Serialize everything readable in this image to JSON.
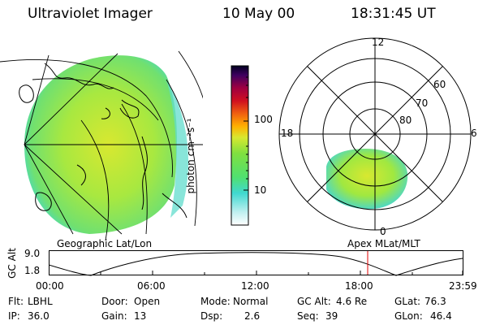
{
  "header": {
    "instrument": "Ultraviolet Imager",
    "date": "10 May 00",
    "time": "18:31:45 UT"
  },
  "colorbar": {
    "unit_label": "photon cm⁻²s⁻¹",
    "ticks": [
      "100",
      "10"
    ]
  },
  "polar_plot": {
    "mlt_labels": {
      "top": "12",
      "right": "6",
      "left": "18",
      "bottom": "0"
    },
    "lat_labels": [
      "60",
      "70",
      "80"
    ],
    "title": "Apex MLat/MLT"
  },
  "geo_map": {
    "title": "Geographic Lat/Lon"
  },
  "orbit_plot": {
    "ylabel": "GC Alt",
    "y_ticks": [
      "9.0",
      "1.8"
    ],
    "x_ticks": [
      "00:00",
      "06:00",
      "12:00",
      "18:00",
      "23:59"
    ],
    "current_time_marker": "18:31"
  },
  "info": {
    "row1": [
      {
        "label": "Flt:",
        "value": "LBHL"
      },
      {
        "label": "Door:",
        "value": "Open"
      },
      {
        "label": "Mode:",
        "value": "Normal"
      },
      {
        "label": "GC Alt:",
        "value": "4.6 Re"
      },
      {
        "label": "GLat:",
        "value": "76.3"
      }
    ],
    "row2": [
      {
        "label": "IP:",
        "value": "36.0"
      },
      {
        "label": "Gain:",
        "value": "13"
      },
      {
        "label": "Dsp:",
        "value": "2.6"
      },
      {
        "label": "Seq:",
        "value": "39"
      },
      {
        "label": "GLon:",
        "value": "46.4"
      }
    ]
  },
  "colors": {
    "accent_marker": "#e00000",
    "image_green": "#8fe040",
    "image_cyan": "#40e0c0"
  }
}
